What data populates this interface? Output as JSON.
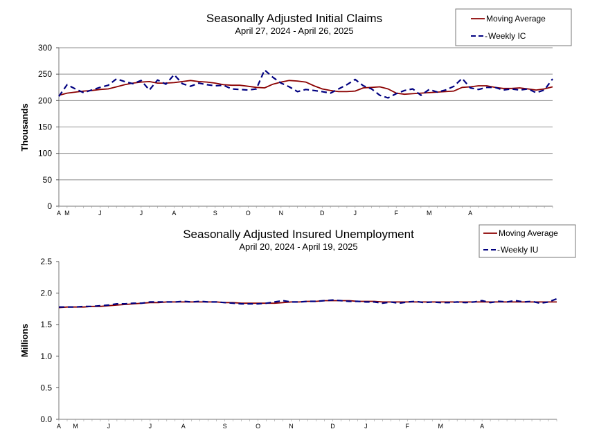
{
  "chart_data": [
    {
      "type": "line",
      "title": "Seasonally Adjusted Initial Claims",
      "subtitle": "April 27, 2024 - April 26, 2025",
      "ylabel": "Thousands",
      "xlabel": "",
      "ylim": [
        0,
        300
      ],
      "yticks": [
        "0",
        "50",
        "100",
        "150",
        "200",
        "250",
        "300"
      ],
      "grid": "horizontal",
      "legend_placement": "top-right",
      "x_month_labels": [
        "A",
        "M",
        "J",
        "J",
        "A",
        "S",
        "O",
        "N",
        "D",
        "J",
        "F",
        "M",
        "A"
      ],
      "month_week_index": [
        0,
        1,
        5,
        10,
        14,
        19,
        23,
        27,
        32,
        36,
        41,
        45,
        50
      ],
      "series": [
        {
          "name": "Moving Average",
          "color": "#8b0000",
          "style": "solid",
          "values": [
            210,
            214,
            216,
            218,
            219,
            221,
            222,
            226,
            230,
            233,
            235,
            236,
            233,
            233,
            234,
            236,
            238,
            236,
            235,
            233,
            230,
            229,
            229,
            227,
            225,
            224,
            231,
            235,
            238,
            237,
            235,
            228,
            222,
            219,
            217,
            217,
            218,
            224,
            225,
            226,
            222,
            214,
            212,
            213,
            214,
            215,
            216,
            217,
            218,
            225,
            226,
            228,
            228,
            225,
            223,
            223,
            224,
            222,
            220,
            222,
            226
          ]
        },
        {
          "name": "Weekly IC",
          "color": "#000080",
          "style": "dashed",
          "values": [
            208,
            230,
            222,
            215,
            220,
            225,
            229,
            241,
            236,
            232,
            238,
            220,
            239,
            231,
            249,
            232,
            227,
            233,
            230,
            228,
            229,
            222,
            221,
            220,
            222,
            258,
            244,
            233,
            226,
            217,
            221,
            219,
            217,
            214,
            222,
            230,
            240,
            228,
            222,
            210,
            205,
            213,
            219,
            222,
            210,
            221,
            216,
            220,
            227,
            242,
            224,
            221,
            225,
            225,
            220,
            222,
            220,
            222,
            215,
            220,
            241
          ]
        }
      ]
    },
    {
      "type": "line",
      "title": "Seasonally Adjusted Insured Unemployment",
      "subtitle": "April 20, 2024 - April 19, 2025",
      "ylabel": "Millions",
      "xlabel": "",
      "ylim": [
        0.0,
        2.5
      ],
      "yticks": [
        "0.0",
        "0.5",
        "1.0",
        "1.5",
        "2.0",
        "2.5"
      ],
      "grid": "none",
      "legend_placement": "top-right",
      "x_month_labels": [
        "A",
        "M",
        "J",
        "J",
        "A",
        "S",
        "O",
        "N",
        "D",
        "J",
        "F",
        "M",
        "A"
      ],
      "month_week_index": [
        0,
        2,
        6,
        11,
        15,
        20,
        24,
        28,
        33,
        37,
        42,
        46,
        51
      ],
      "series": [
        {
          "name": "Moving Average",
          "color": "#8b0000",
          "style": "solid",
          "values": [
            1.77,
            1.78,
            1.78,
            1.78,
            1.79,
            1.79,
            1.8,
            1.81,
            1.82,
            1.83,
            1.84,
            1.85,
            1.85,
            1.86,
            1.86,
            1.86,
            1.86,
            1.86,
            1.86,
            1.86,
            1.85,
            1.85,
            1.84,
            1.84,
            1.84,
            1.84,
            1.84,
            1.85,
            1.86,
            1.86,
            1.87,
            1.87,
            1.88,
            1.88,
            1.88,
            1.88,
            1.87,
            1.87,
            1.87,
            1.86,
            1.86,
            1.86,
            1.86,
            1.86,
            1.86,
            1.86,
            1.86,
            1.86,
            1.86,
            1.86,
            1.86,
            1.86,
            1.86,
            1.86,
            1.86,
            1.86,
            1.86,
            1.86,
            1.86,
            1.86,
            1.86
          ]
        },
        {
          "name": "Weekly IU",
          "color": "#000080",
          "style": "dashed",
          "values": [
            1.78,
            1.78,
            1.78,
            1.79,
            1.79,
            1.8,
            1.81,
            1.83,
            1.83,
            1.84,
            1.84,
            1.86,
            1.86,
            1.86,
            1.86,
            1.87,
            1.86,
            1.87,
            1.86,
            1.86,
            1.85,
            1.84,
            1.83,
            1.83,
            1.83,
            1.84,
            1.86,
            1.88,
            1.86,
            1.86,
            1.87,
            1.87,
            1.88,
            1.89,
            1.88,
            1.87,
            1.87,
            1.86,
            1.86,
            1.84,
            1.86,
            1.84,
            1.86,
            1.87,
            1.85,
            1.86,
            1.85,
            1.85,
            1.86,
            1.85,
            1.86,
            1.88,
            1.85,
            1.87,
            1.86,
            1.88,
            1.86,
            1.87,
            1.84,
            1.86,
            1.91
          ]
        }
      ]
    }
  ]
}
